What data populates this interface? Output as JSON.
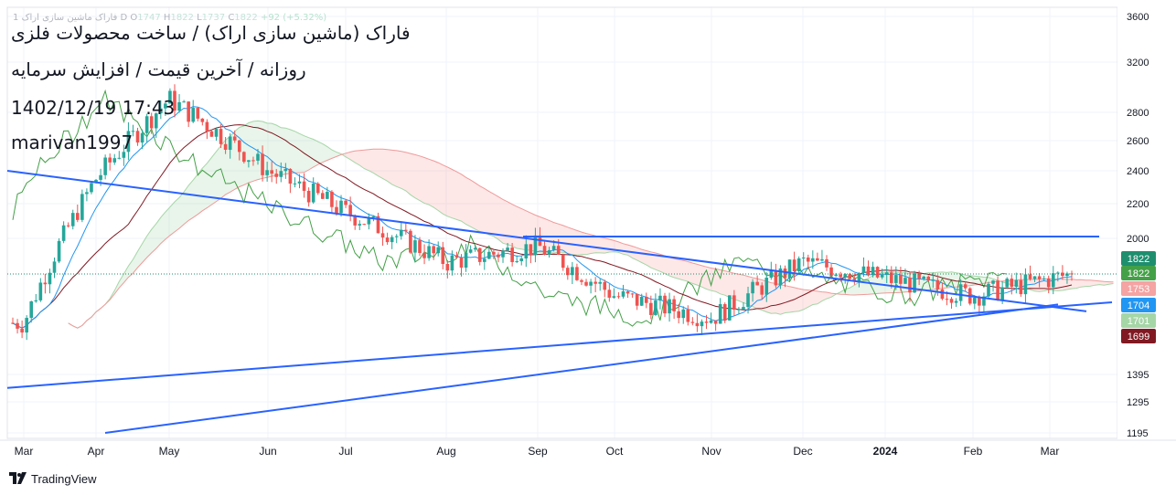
{
  "legend": {
    "symbol": "فاراک ماشین سازی اراک",
    "interval": "1",
    "timeframe": "D",
    "open_label": "O",
    "open": "1747",
    "high_label": "H",
    "high": "1822",
    "low_label": "L",
    "low": "1737",
    "close_label": "C",
    "close": "1822",
    "change": "+92 (+5.32%)"
  },
  "overlay": {
    "title": "فاراک (ماشین سازی اراک) / ساخت محصولات فلزی",
    "subtitle": "روزانه / آخرین قیمت / افزایش سرمایه",
    "datetime": "1402/12/19 17:43",
    "author": "marivan1997"
  },
  "footer": {
    "brand": "TradingView",
    "icon": "tradingview-logo-icon"
  },
  "colors": {
    "up": "#26a69a",
    "down": "#ef5350",
    "trendline": "#2962ff",
    "tenkan": "#2196f3",
    "kijun": "#801922",
    "chikou": "#43a047",
    "span_a": "#a5d6a7",
    "span_b": "#ef9a9a",
    "cloud_bull": "#4caf50",
    "cloud_bear": "#f44336"
  },
  "chart_data": {
    "type": "candlestick",
    "indicators": [
      "Ichimoku Cloud"
    ],
    "x_axis_labels": [
      "Mar",
      "Apr",
      "May",
      "Jun",
      "Jul",
      "Aug",
      "Sep",
      "Oct",
      "Nov",
      "Dec",
      "2024",
      "Feb",
      "Mar"
    ],
    "y_axis_labels": [
      "3600",
      "3200",
      "2800",
      "2600",
      "2400",
      "2200",
      "2000",
      "1395",
      "1295",
      "1195"
    ],
    "y_scale": "log",
    "y_range": [
      1165,
      3700
    ],
    "price_labels": [
      {
        "value": "1822",
        "role": "close",
        "color": "#1e8e6e"
      },
      {
        "value": "1822",
        "role": "span_a",
        "color": "#43a047"
      },
      {
        "value": "1753",
        "role": "span_b",
        "color": "#f5a3a3"
      },
      {
        "value": "1704",
        "role": "tenkan",
        "color": "#2196f3"
      },
      {
        "value": "1701",
        "role": "chikou",
        "color": "#a5d6a7"
      },
      {
        "value": "1699",
        "role": "kijun",
        "color": "#801922"
      }
    ],
    "candles_monthly_path": [
      {
        "month": "Mar",
        "price": 1600
      },
      {
        "month": "Apr",
        "price": 2350
      },
      {
        "month": "May",
        "price": 2900
      },
      {
        "month": "Jun",
        "price": 2400
      },
      {
        "month": "Jul",
        "price": 2150
      },
      {
        "month": "Aug",
        "price": 1880
      },
      {
        "month": "Sep",
        "price": 1960
      },
      {
        "month": "Oct",
        "price": 1720
      },
      {
        "month": "Nov",
        "price": 1620
      },
      {
        "month": "Dec",
        "price": 1880
      },
      {
        "month": "2024",
        "price": 1800
      },
      {
        "month": "Feb",
        "price": 1720
      },
      {
        "month": "Mar",
        "price": 1822
      }
    ],
    "trendlines": [
      {
        "name": "descending resistance",
        "from": {
          "month": "Mar",
          "price": 2400
        },
        "to": {
          "month": "Mar",
          "price": 1650
        }
      },
      {
        "name": "horizontal resistance",
        "from": {
          "month": "Sep",
          "price": 2010
        },
        "to": {
          "month": "Mar",
          "price": 2010
        }
      },
      {
        "name": "long-term support 1",
        "from": {
          "month": "Mar",
          "price": 1345
        },
        "to": {
          "month": "Mar",
          "price": 1690
        }
      },
      {
        "name": "long-term support 2",
        "from": {
          "month": "Apr",
          "price": 1180
        },
        "to": {
          "month": "Mar",
          "price": 1680
        }
      }
    ]
  }
}
